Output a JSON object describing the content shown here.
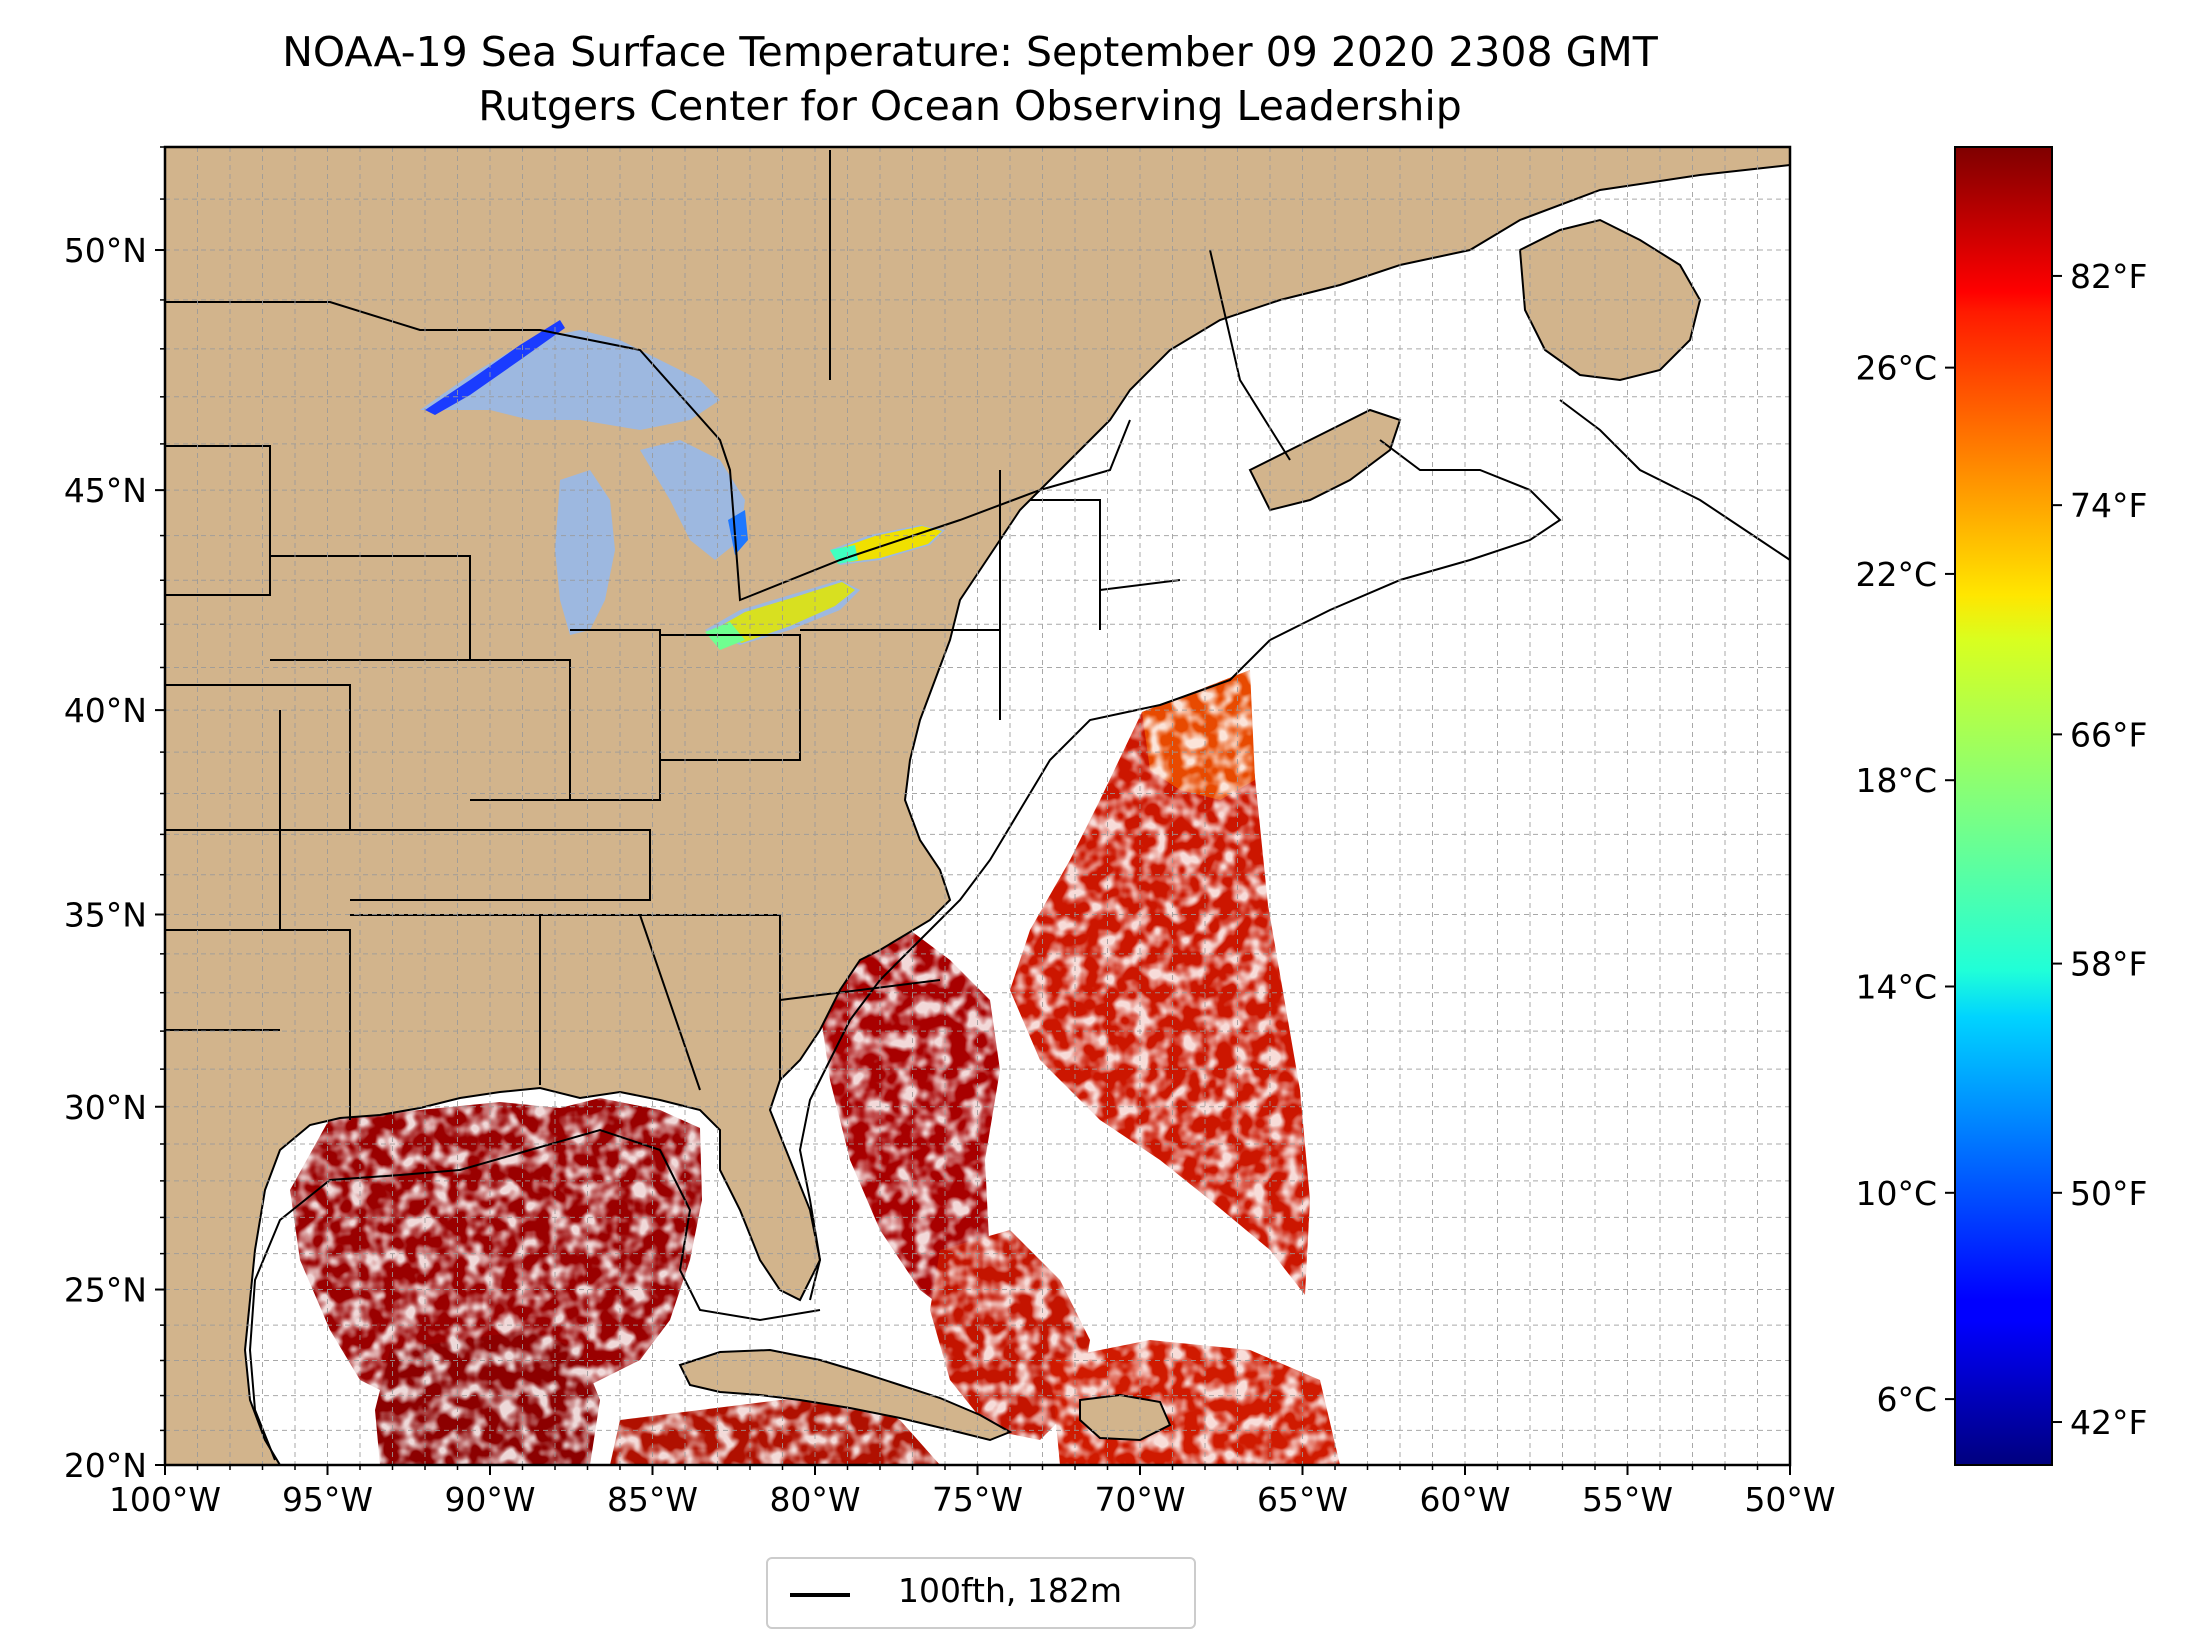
{
  "title": {
    "line1": "NOAA-19 Sea Surface Temperature: September 09 2020 2308 GMT",
    "line2": "Rutgers Center for Ocean Observing Leadership"
  },
  "map": {
    "lon_range": [
      -100,
      -50
    ],
    "lat_range": [
      20,
      52
    ],
    "x_ticks": [
      "100°W",
      "95°W",
      "90°W",
      "85°W",
      "80°W",
      "75°W",
      "70°W",
      "65°W",
      "60°W",
      "55°W",
      "50°W"
    ],
    "y_ticks": [
      "20°N",
      "25°N",
      "30°N",
      "35°N",
      "40°N",
      "45°N",
      "50°N"
    ],
    "y_tick_values": [
      20,
      25,
      30,
      35,
      40,
      45,
      50
    ],
    "gridlines": true,
    "land_color": "#d2b48c",
    "lake_color": "#9db8e0",
    "ocean_no_data_color": "#ffffff"
  },
  "colorbar": {
    "colormap": "jet",
    "celsius_ticks": [
      "6°C",
      "10°C",
      "14°C",
      "18°C",
      "22°C",
      "26°C"
    ],
    "celsius_values": [
      6,
      10,
      14,
      18,
      22,
      26
    ],
    "fahrenheit_ticks": [
      "42°F",
      "50°F",
      "58°F",
      "66°F",
      "74°F",
      "82°F"
    ],
    "fahrenheit_values": [
      42,
      50,
      58,
      66,
      74,
      82
    ],
    "range_f": [
      40.5,
      86.5
    ]
  },
  "legend": {
    "label": "100fth, 182m",
    "placement": "bottom-center"
  }
}
